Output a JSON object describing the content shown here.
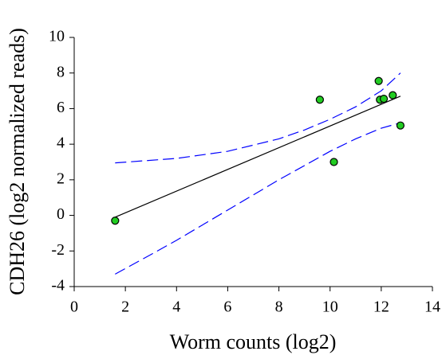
{
  "chart_data": {
    "type": "scatter",
    "x_label": "Worm counts (log2)",
    "y_label": "CDH26 (log2 normalized reads)",
    "xlim": [
      0,
      14
    ],
    "xticks": [
      0,
      2,
      4,
      6,
      8,
      10,
      12,
      14
    ],
    "ylim": [
      -4,
      10
    ],
    "yticks": [
      -4,
      -2,
      0,
      2,
      4,
      6,
      8,
      10
    ],
    "grid": false,
    "series": [
      {
        "color": "#22cc22",
        "x": [
          1.6,
          9.6,
          10.15,
          11.9,
          11.95,
          12.1,
          12.45,
          12.75
        ],
        "values": [
          -0.3,
          6.5,
          3.0,
          7.55,
          6.5,
          6.55,
          6.75,
          5.05
        ]
      }
    ],
    "lines": [
      {
        "color": "#000000",
        "dashed": false,
        "x": [
          1.6,
          12.75
        ],
        "values": [
          -0.1,
          6.7
        ]
      },
      {
        "color": "#0000ff",
        "dashed": true,
        "x": [
          1.6,
          4,
          6,
          8,
          9,
          10,
          11,
          12,
          12.75
        ],
        "values": [
          2.95,
          3.2,
          3.6,
          4.3,
          4.8,
          5.4,
          6.1,
          7.0,
          8.0
        ]
      },
      {
        "color": "#0000ff",
        "dashed": true,
        "x": [
          1.6,
          3,
          4,
          6,
          8,
          10,
          11,
          12,
          12.75
        ],
        "values": [
          -3.3,
          -2.2,
          -1.4,
          0.3,
          2.0,
          3.6,
          4.3,
          4.9,
          5.2
        ]
      }
    ]
  }
}
